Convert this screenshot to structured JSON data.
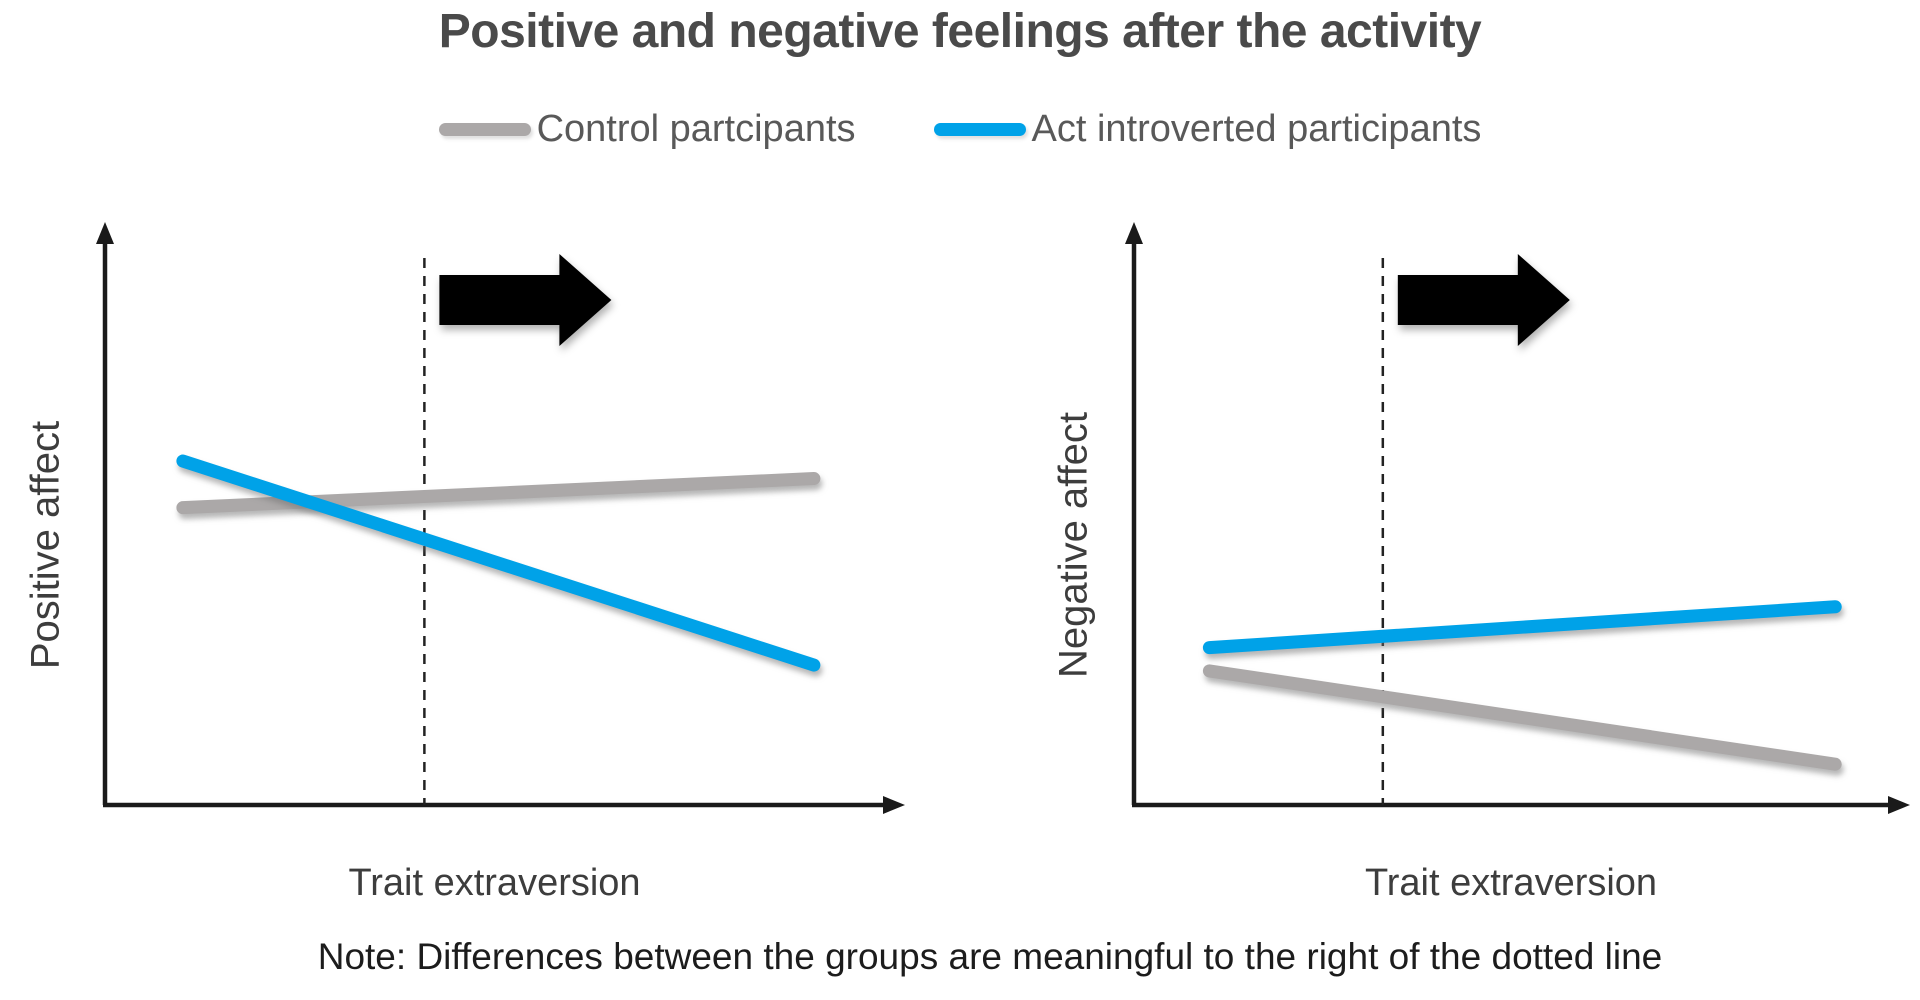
{
  "figure": {
    "title": "Positive and negative feelings after the activity",
    "note": "Note: Differences between the groups are meaningful to the right of the dotted line"
  },
  "legend": {
    "position": "top",
    "items": [
      {
        "label": "Control partcipants",
        "color": "#ABA8A8"
      },
      {
        "label": "Act introverted participants",
        "color": "#00A2E8"
      }
    ]
  },
  "colors": {
    "accent_blue": "#00A2E8",
    "line_gray": "#ABA8A8",
    "axis_black": "#1a1a1a",
    "title_gray": "#4a4a4a",
    "legend_text_gray": "#595959"
  },
  "chart_data": [
    {
      "type": "line",
      "panel": "positive-affect",
      "ylabel": "Positive affect",
      "xlabel": "Trait extraversion",
      "x_range": [
        0,
        1
      ],
      "y_range": [
        0,
        1
      ],
      "ticks": "none",
      "grid": "off",
      "dashed_line_x": 0.41,
      "annotation": {
        "block_arrow": "right",
        "meaning": "region right of dotted line"
      },
      "series": [
        {
          "name": "Control partcipants",
          "color": "#ABA8A8",
          "x": [
            0.1,
            0.91
          ],
          "y": [
            0.51,
            0.56
          ]
        },
        {
          "name": "Act introverted participants",
          "color": "#00A2E8",
          "x": [
            0.1,
            0.91
          ],
          "y": [
            0.59,
            0.24
          ]
        }
      ]
    },
    {
      "type": "line",
      "panel": "negative-affect",
      "ylabel": "Negative affect",
      "xlabel": "Trait extraversion",
      "x_range": [
        0,
        1
      ],
      "y_range": [
        0,
        1
      ],
      "ticks": "none",
      "grid": "off",
      "dashed_line_x": 0.33,
      "annotation": {
        "block_arrow": "right",
        "meaning": "region right of dotted line"
      },
      "series": [
        {
          "name": "Control partcipants",
          "color": "#ABA8A8",
          "x": [
            0.1,
            0.93
          ],
          "y": [
            0.23,
            0.07
          ]
        },
        {
          "name": "Act introverted participants",
          "color": "#00A2E8",
          "x": [
            0.1,
            0.93
          ],
          "y": [
            0.27,
            0.34
          ]
        }
      ]
    }
  ]
}
